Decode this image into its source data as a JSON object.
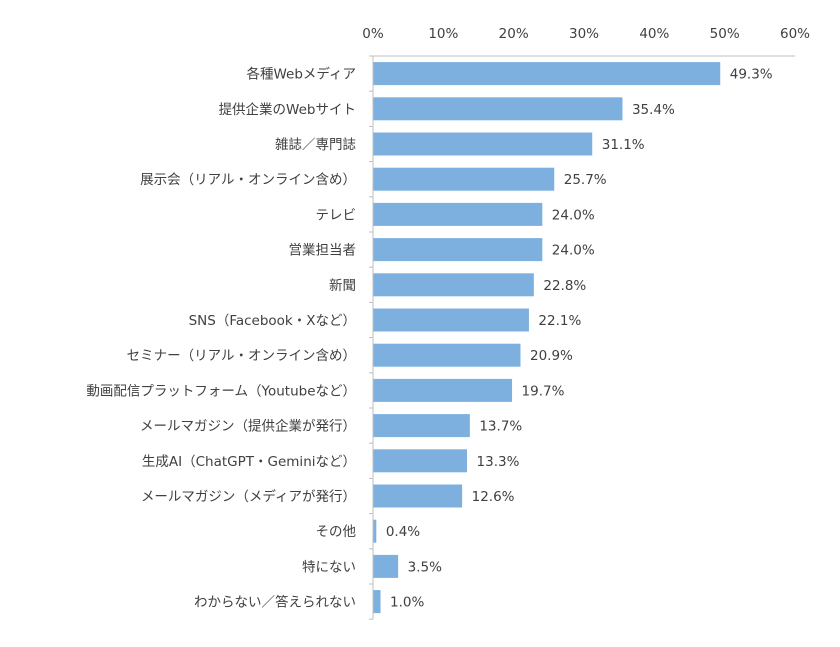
{
  "chart_data": {
    "type": "bar",
    "orientation": "horizontal",
    "title": "",
    "xlabel": "",
    "ylabel": "",
    "xlim": [
      0,
      60
    ],
    "x_ticks": [
      "0%",
      "10%",
      "20%",
      "30%",
      "40%",
      "50%",
      "60%"
    ],
    "x_tick_values": [
      0,
      10,
      20,
      30,
      40,
      50,
      60
    ],
    "grid": false,
    "legend": "none",
    "bar_color": "#7EB0DF",
    "categories": [
      "各種Webメディア",
      "提供企業のWebサイト",
      "雑誌／専門誌",
      "展示会（リアル・オンライン含め）",
      "テレビ",
      "営業担当者",
      "新聞",
      "SNS（Facebook・Xなど）",
      "セミナー（リアル・オンライン含め）",
      "動画配信プラットフォーム（Youtubeなど）",
      "メールマガジン（提供企業が発行）",
      "生成AI（ChatGPT・Geminiなど）",
      "メールマガジン（メディアが発行）",
      "その他",
      "特にない",
      "わからない／答えられない"
    ],
    "values": [
      49.3,
      35.4,
      31.1,
      25.7,
      24.0,
      24.0,
      22.8,
      22.1,
      20.9,
      19.7,
      13.7,
      13.3,
      12.6,
      0.4,
      3.5,
      1.0
    ],
    "data_labels": [
      "49.3%",
      "35.4%",
      "31.1%",
      "25.7%",
      "24.0%",
      "24.0%",
      "22.8%",
      "22.1%",
      "20.9%",
      "19.7%",
      "13.7%",
      "13.3%",
      "12.6%",
      "0.4%",
      "3.5%",
      "1.0%"
    ]
  }
}
